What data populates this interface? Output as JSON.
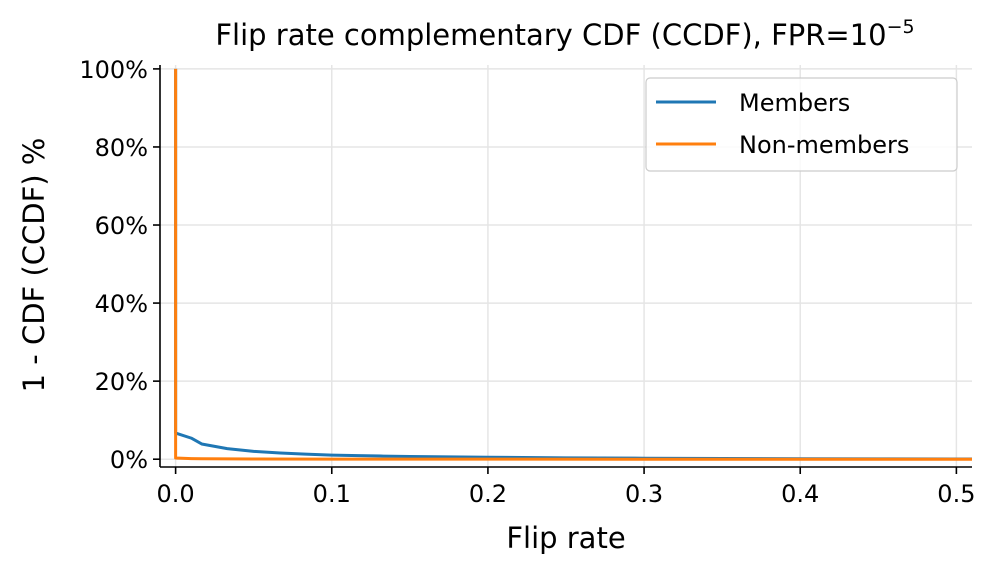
{
  "chart_data": {
    "type": "line",
    "title": "Flip rate complementary CDF (CCDF), FPR=10",
    "title_superscript": "−5",
    "xlabel": "Flip rate",
    "ylabel": "1 - CDF (CCDF) %",
    "xlim": [
      -0.01,
      0.51
    ],
    "ylim": [
      -2,
      101
    ],
    "x_ticks": [
      0.0,
      0.1,
      0.2,
      0.3,
      0.4,
      0.5
    ],
    "x_tick_labels": [
      "0.0",
      "0.1",
      "0.2",
      "0.3",
      "0.4",
      "0.5"
    ],
    "y_ticks": [
      0,
      20,
      40,
      60,
      80,
      100
    ],
    "y_tick_labels": [
      "0%",
      "20%",
      "40%",
      "60%",
      "80%",
      "100%"
    ],
    "grid": true,
    "legend_position": "top-right",
    "series": [
      {
        "name": "Members",
        "color": "#1f77b4",
        "x": [
          0.0,
          0.0,
          0.01,
          0.0167,
          0.033,
          0.05,
          0.067,
          0.083,
          0.1,
          0.117,
          0.133,
          0.15,
          0.2,
          0.25,
          0.3,
          0.35,
          0.4,
          0.45,
          0.5,
          0.51
        ],
        "y": [
          100,
          6.7,
          5.4,
          3.9,
          2.7,
          2.0,
          1.6,
          1.3,
          1.05,
          0.9,
          0.8,
          0.7,
          0.5,
          0.35,
          0.25,
          0.18,
          0.12,
          0.08,
          0.05,
          0.04
        ]
      },
      {
        "name": "Non-members",
        "color": "#ff7f0e",
        "x": [
          0.0,
          0.0,
          0.01,
          0.0167,
          0.05,
          0.1,
          0.2,
          0.3,
          0.4,
          0.5,
          0.51
        ],
        "y": [
          100,
          0.3,
          0.15,
          0.1,
          0.05,
          0.02,
          0.01,
          0.0,
          0.0,
          0.0,
          0.0
        ]
      }
    ]
  }
}
